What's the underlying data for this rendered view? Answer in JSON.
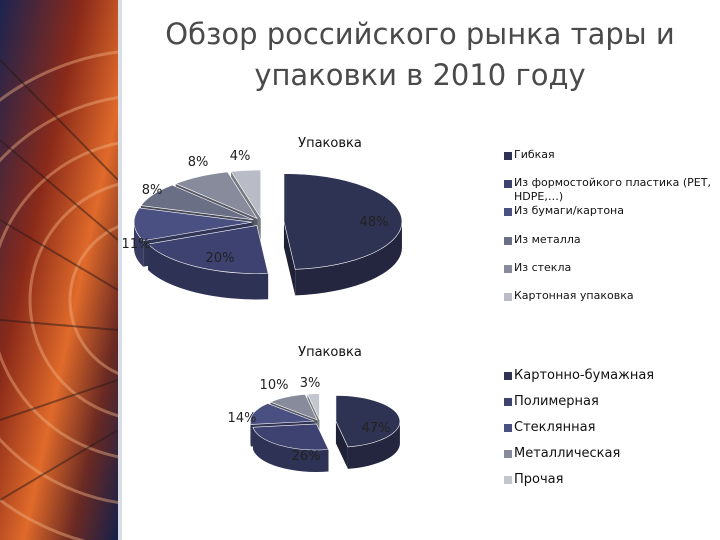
{
  "slide": {
    "title_line1": "Обзор российского рынка тары и",
    "title_line2": "упаковки в 2010 году"
  },
  "chart_data": [
    {
      "type": "pie",
      "title": "Упаковка",
      "categories": [
        "Гибкая",
        "Из формостойкого пластика (PET, HDPE,…)",
        "Из бумаги/картона",
        "Из металла",
        "Из стекла",
        "Картонная упаковка"
      ],
      "values": [
        48,
        20,
        11,
        8,
        8,
        4
      ],
      "labels": [
        "48%",
        "20%",
        "11%",
        "8%",
        "8%",
        "4%"
      ],
      "colors": [
        "#2f3353",
        "#3d4270",
        "#4a5082",
        "#6a6f86",
        "#878b9c",
        "#b9bbc6"
      ],
      "legend_position": "right"
    },
    {
      "type": "pie",
      "title": "Упаковка",
      "categories": [
        "Картонно-бумажная",
        "Полимерная",
        "Стеклянная",
        "Металлическая",
        "Прочая"
      ],
      "values": [
        47,
        26,
        14,
        10,
        3
      ],
      "labels": [
        "47%",
        "26%",
        "14%",
        "10%",
        "3%"
      ],
      "colors": [
        "#2f3353",
        "#3d4270",
        "#4a5082",
        "#878b9c",
        "#c4c6cf"
      ],
      "legend_position": "right"
    }
  ]
}
